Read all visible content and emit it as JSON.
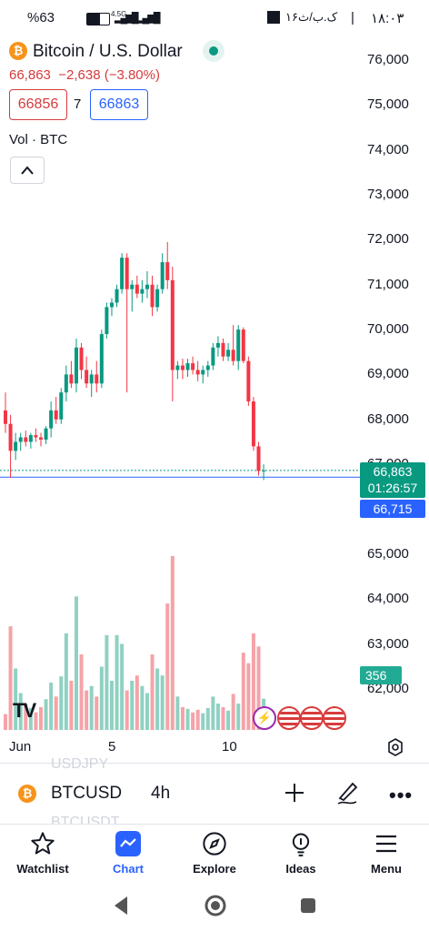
{
  "status_bar": {
    "battery": "%63",
    "network": "4.5G",
    "time": "۱۸:۰۳",
    "date_text": "۱۶ک.ب/ث"
  },
  "header": {
    "symbol_name": "Bitcoin / U.S. Dollar",
    "badge_glyph": "₿",
    "last_price": "66,863",
    "change": "−2,638 (−3.80%)",
    "bid": "66856",
    "spread": "7",
    "ask": "66863",
    "volume_label": "Vol · BTC"
  },
  "price_axis": {
    "ticks": [
      "76,000",
      "75,000",
      "74,000",
      "73,000",
      "72,000",
      "71,000",
      "70,000",
      "69,000",
      "68,000",
      "67,000",
      "65,000",
      "64,000",
      "63,000",
      "62,000"
    ],
    "current_price": "66,863",
    "countdown": "01:26:57",
    "secondary_price": "66,715",
    "volume_value": "356"
  },
  "time_axis": {
    "ticks": [
      "Jun",
      "5",
      "10"
    ]
  },
  "chart_data": {
    "type": "candlestick",
    "interval": "4h",
    "up_color": "#089981",
    "down_color": "#f23645",
    "ylim": [
      61500,
      76500
    ],
    "candles": [
      {
        "o": 68200,
        "h": 68600,
        "l": 67700,
        "c": 67900,
        "v": 180
      },
      {
        "o": 67900,
        "h": 68100,
        "l": 66700,
        "c": 67300,
        "v": 1180
      },
      {
        "o": 67300,
        "h": 67700,
        "l": 67100,
        "c": 67500,
        "v": 700
      },
      {
        "o": 67500,
        "h": 67700,
        "l": 67300,
        "c": 67600,
        "v": 420
      },
      {
        "o": 67600,
        "h": 67750,
        "l": 67400,
        "c": 67500,
        "v": 300
      },
      {
        "o": 67500,
        "h": 67700,
        "l": 67350,
        "c": 67650,
        "v": 250
      },
      {
        "o": 67650,
        "h": 67800,
        "l": 67500,
        "c": 67600,
        "v": 200
      },
      {
        "o": 67600,
        "h": 67700,
        "l": 67400,
        "c": 67550,
        "v": 260
      },
      {
        "o": 67550,
        "h": 67850,
        "l": 67450,
        "c": 67800,
        "v": 350
      },
      {
        "o": 67800,
        "h": 68400,
        "l": 67600,
        "c": 68200,
        "v": 540
      },
      {
        "o": 68200,
        "h": 68500,
        "l": 67900,
        "c": 68000,
        "v": 380
      },
      {
        "o": 68000,
        "h": 68700,
        "l": 67900,
        "c": 68600,
        "v": 610
      },
      {
        "o": 68600,
        "h": 69200,
        "l": 68400,
        "c": 69000,
        "v": 1100
      },
      {
        "o": 69000,
        "h": 69300,
        "l": 68700,
        "c": 68800,
        "v": 560
      },
      {
        "o": 68800,
        "h": 69800,
        "l": 68600,
        "c": 69600,
        "v": 1520
      },
      {
        "o": 69600,
        "h": 69700,
        "l": 68900,
        "c": 69100,
        "v": 860
      },
      {
        "o": 69100,
        "h": 69400,
        "l": 68700,
        "c": 68800,
        "v": 450
      },
      {
        "o": 68800,
        "h": 69100,
        "l": 68500,
        "c": 69000,
        "v": 500
      },
      {
        "o": 69000,
        "h": 69300,
        "l": 68600,
        "c": 68800,
        "v": 380
      },
      {
        "o": 68800,
        "h": 70000,
        "l": 68700,
        "c": 69900,
        "v": 720
      },
      {
        "o": 69900,
        "h": 70600,
        "l": 69800,
        "c": 70500,
        "v": 1080
      },
      {
        "o": 70500,
        "h": 70700,
        "l": 70300,
        "c": 70600,
        "v": 560
      },
      {
        "o": 70600,
        "h": 71000,
        "l": 70500,
        "c": 70900,
        "v": 1080
      },
      {
        "o": 70900,
        "h": 71700,
        "l": 70800,
        "c": 71600,
        "v": 980
      },
      {
        "o": 71600,
        "h": 71700,
        "l": 68600,
        "c": 70900,
        "v": 450
      },
      {
        "o": 70900,
        "h": 71100,
        "l": 70400,
        "c": 71000,
        "v": 560
      },
      {
        "o": 71000,
        "h": 71200,
        "l": 70700,
        "c": 70800,
        "v": 620
      },
      {
        "o": 70800,
        "h": 71100,
        "l": 70600,
        "c": 70900,
        "v": 500
      },
      {
        "o": 70900,
        "h": 71300,
        "l": 70700,
        "c": 71000,
        "v": 420
      },
      {
        "o": 71000,
        "h": 71200,
        "l": 70300,
        "c": 70500,
        "v": 860
      },
      {
        "o": 70500,
        "h": 71000,
        "l": 70400,
        "c": 70900,
        "v": 700
      },
      {
        "o": 70900,
        "h": 71700,
        "l": 70800,
        "c": 71500,
        "v": 620
      },
      {
        "o": 71500,
        "h": 71950,
        "l": 70900,
        "c": 71100,
        "v": 1440
      },
      {
        "o": 71100,
        "h": 71400,
        "l": 68400,
        "c": 69100,
        "v": 1980
      },
      {
        "o": 69100,
        "h": 69300,
        "l": 68900,
        "c": 69200,
        "v": 380
      },
      {
        "o": 69200,
        "h": 69350,
        "l": 68900,
        "c": 69100,
        "v": 260
      },
      {
        "o": 69100,
        "h": 69350,
        "l": 68950,
        "c": 69250,
        "v": 240
      },
      {
        "o": 69250,
        "h": 69400,
        "l": 69000,
        "c": 69100,
        "v": 200
      },
      {
        "o": 69100,
        "h": 69300,
        "l": 68850,
        "c": 69000,
        "v": 230
      },
      {
        "o": 69000,
        "h": 69200,
        "l": 68800,
        "c": 69100,
        "v": 190
      },
      {
        "o": 69100,
        "h": 69300,
        "l": 68950,
        "c": 69200,
        "v": 250
      },
      {
        "o": 69200,
        "h": 69700,
        "l": 69100,
        "c": 69600,
        "v": 380
      },
      {
        "o": 69600,
        "h": 69850,
        "l": 69400,
        "c": 69700,
        "v": 300
      },
      {
        "o": 69700,
        "h": 69800,
        "l": 69300,
        "c": 69400,
        "v": 260
      },
      {
        "o": 69400,
        "h": 69700,
        "l": 69300,
        "c": 69550,
        "v": 220
      },
      {
        "o": 69550,
        "h": 70100,
        "l": 69200,
        "c": 69300,
        "v": 410
      },
      {
        "o": 69300,
        "h": 70100,
        "l": 69100,
        "c": 70000,
        "v": 300
      },
      {
        "o": 70000,
        "h": 70050,
        "l": 69250,
        "c": 69300,
        "v": 880
      },
      {
        "o": 69300,
        "h": 69400,
        "l": 68300,
        "c": 68400,
        "v": 760
      },
      {
        "o": 68400,
        "h": 68500,
        "l": 67300,
        "c": 67400,
        "v": 1100
      },
      {
        "o": 67400,
        "h": 67500,
        "l": 66750,
        "c": 66850,
        "v": 950
      },
      {
        "o": 66850,
        "h": 67000,
        "l": 66650,
        "c": 66863,
        "v": 356
      }
    ]
  },
  "toolbar": {
    "symbol": "BTCUSD",
    "interval": "4h",
    "ghost_top": "USDJPY",
    "ghost_bottom": "BTCUSDT"
  },
  "nav": {
    "items": [
      {
        "label": "Watchlist"
      },
      {
        "label": "Chart"
      },
      {
        "label": "Explore"
      },
      {
        "label": "Ideas"
      },
      {
        "label": "Menu"
      }
    ]
  },
  "logo_text": "TV"
}
